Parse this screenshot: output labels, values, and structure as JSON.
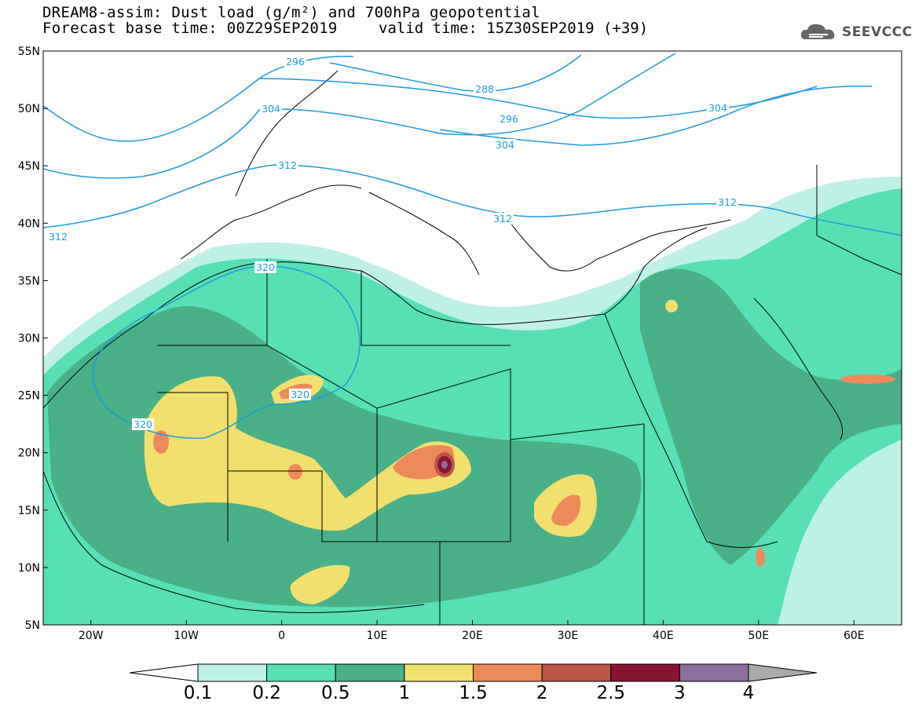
{
  "title": {
    "line1": "DREAM8-assim: Dust load (g/m²) and 700hPa geopotential",
    "line2": "Forecast base time: 00Z29SEP2019",
    "valid": "valid time: 15Z30SEP2019 (+39)"
  },
  "logo": {
    "text": "SEEVCCC",
    "icon": "cloud-icon"
  },
  "axes": {
    "lat_labels": [
      "55N",
      "50N",
      "45N",
      "40N",
      "35N",
      "30N",
      "25N",
      "20N",
      "15N",
      "10N",
      "5N"
    ],
    "lon_labels": [
      "20W",
      "10W",
      "0",
      "10E",
      "20E",
      "30E",
      "40E",
      "50E",
      "60E"
    ],
    "lon_range": [
      -25,
      65
    ],
    "lat_range": [
      5,
      55
    ]
  },
  "contour_labels": [
    "296",
    "288",
    "296",
    "304",
    "304",
    "304",
    "312",
    "312",
    "312",
    "312",
    "320",
    "320",
    "320"
  ],
  "colorbar": {
    "ticks": [
      "0.1",
      "0.2",
      "0.5",
      "1",
      "1.5",
      "2",
      "2.5",
      "3",
      "4"
    ],
    "colors": [
      "#bff0e6",
      "#56e0b4",
      "#49b088",
      "#f2e06e",
      "#ed8a5c",
      "#bb5544",
      "#8a1433",
      "#8a6f9e"
    ],
    "low_extend": "#ffffff",
    "high_extend": "#aaaaaa"
  },
  "palette": {
    "contour": "#1b9be0",
    "land_border": "#000000"
  }
}
